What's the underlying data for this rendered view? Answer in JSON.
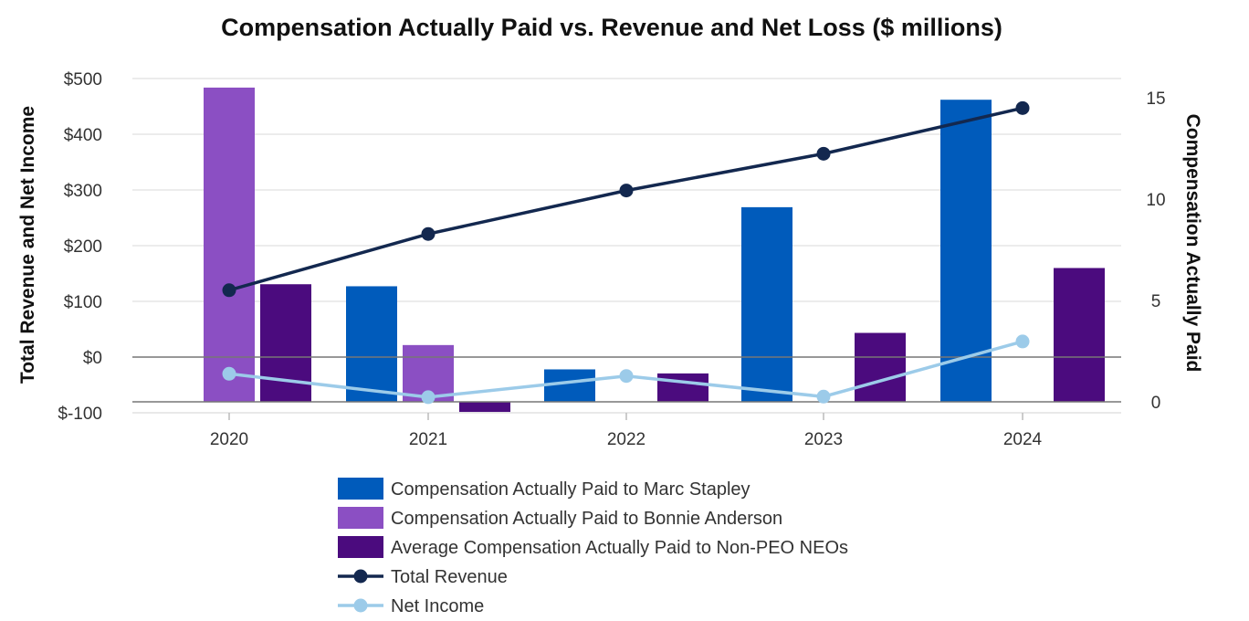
{
  "chart_data": {
    "type": "bar",
    "title": "Compensation Actually Paid vs. Revenue and Net Loss ($ millions)",
    "categories": [
      "2020",
      "2021",
      "2022",
      "2023",
      "2024"
    ],
    "y_left": {
      "label": "Total Revenue and Net Income",
      "range": [
        -100,
        500
      ],
      "ticks": [
        500,
        400,
        300,
        200,
        100,
        0,
        -100
      ],
      "tick_labels": [
        "$500",
        "$400",
        "$300",
        "$200",
        "$100",
        "$0",
        "$-100"
      ]
    },
    "y_right": {
      "label": "Compensation Actually Paid",
      "range": [
        0,
        15.5
      ],
      "ticks": [
        15,
        10,
        5,
        0
      ],
      "tick_labels": [
        "15",
        "10",
        "5",
        "0"
      ]
    },
    "bar_series": [
      {
        "name": "Compensation Actually Paid to Marc Stapley",
        "color": "#005bbb",
        "values": [
          null,
          5.7,
          1.6,
          9.6,
          14.9
        ]
      },
      {
        "name": "Compensation Actually Paid to Bonnie Anderson",
        "color": "#8b4fc3",
        "values": [
          15.5,
          2.8,
          null,
          null,
          null
        ]
      },
      {
        "name": "Average Compensation Actually Paid to Non-PEO NEOs",
        "color": "#4b0b7e",
        "values": [
          5.8,
          -0.5,
          1.4,
          3.4,
          6.6
        ]
      }
    ],
    "line_series": [
      {
        "name": "Total Revenue",
        "color": "#13284f",
        "values": [
          120,
          221,
          299,
          365,
          447
        ]
      },
      {
        "name": "Net Income",
        "color": "#9ccbe9",
        "values": [
          -30,
          -72,
          -34,
          -71,
          28
        ]
      }
    ],
    "legend_position": "bottom"
  }
}
